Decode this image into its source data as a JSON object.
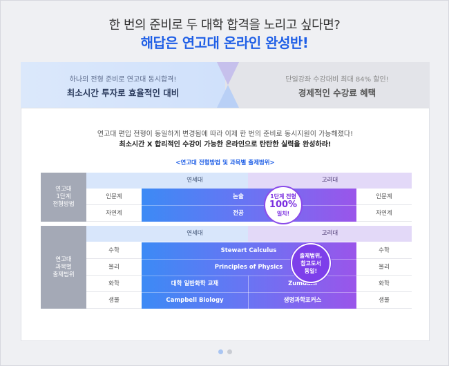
{
  "header": {
    "line1": "한 번의 준비로 두 대학 합격을 노리고 싶다면?",
    "line2": "해답은 연고대 온라인 완성반!"
  },
  "band": {
    "left_small": "하나의 전형 준비로 연고대 동시합격!",
    "left_big": "최소시간 투자로 효율적인 대비",
    "right_small": "단일강좌 수강대비 최대 84% 할인!",
    "right_big": "경제적인 수강료 혜택"
  },
  "panel": {
    "intro": "연고대 편입 전형이 동일하게 변경됨에 따라 이제 한 번의 준비로 동시지원이 가능해졌다!",
    "intro_bold": "최소시간 X 합리적인 수강이 가능한 온라인으로 탄탄한 실력을 완성하라!",
    "caption": "<연고대 전형방법 및 과목별 출제범위>"
  },
  "table1": {
    "row_label": [
      "연고대",
      "1단계",
      "전형방법"
    ],
    "head_yonsei": "연세대",
    "head_korea": "고려대",
    "rows": [
      {
        "left": "인문계",
        "center": "논술",
        "right": "인문계"
      },
      {
        "left": "자연계",
        "center": "전공",
        "right": "자연계"
      }
    ],
    "badge": {
      "line1": "1단계 전형",
      "line2": "100%",
      "line3": "일치!"
    }
  },
  "table2": {
    "row_label": [
      "연고대",
      "과목별",
      "출제범위"
    ],
    "head_yonsei": "연세대",
    "head_korea": "고려대",
    "rows": [
      {
        "left": "수학",
        "center": "Stewart Calculus",
        "right": "수학"
      },
      {
        "left": "물리",
        "center": "Principles of Physics",
        "right": "물리"
      },
      {
        "left": "화학",
        "yonsei": "대학 일반화학 교재",
        "korea": "Zumdahl",
        "right": "화학"
      },
      {
        "left": "생물",
        "yonsei": "Campbell Biology",
        "korea": "생명과학포커스",
        "right": "생물"
      }
    ],
    "badge": {
      "line1": "출제범위,",
      "line2": "참고도서",
      "line3": "동일!"
    }
  },
  "pager": {
    "count": 2,
    "active": 0,
    "active_color": "#a9c5f2",
    "inactive_color": "#c9ccd3"
  },
  "colors": {
    "accent": "#1f5fe6",
    "purple": "#8a4bea"
  }
}
